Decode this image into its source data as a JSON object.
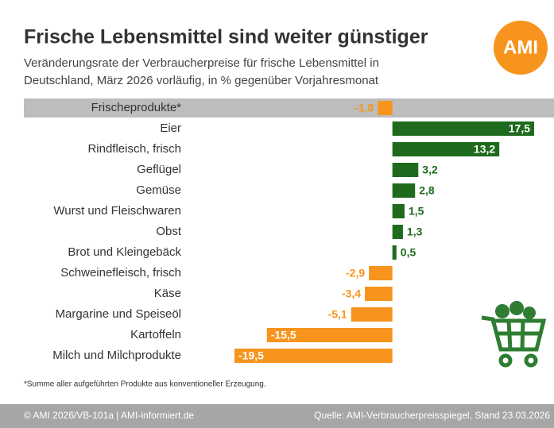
{
  "chart_data": {
    "type": "bar",
    "orientation": "horizontal",
    "title": "Frische Lebensmittel sind weiter günstiger",
    "subtitle": [
      "Veränderungsrate der Verbraucherpreise für frische Lebensmittel in",
      "Deutschland, März 2026 vorläufig, in % gegenüber Vorjahresmonat"
    ],
    "logo": "AMI",
    "categories": [
      "Frischeprodukte*",
      "Eier",
      "Rindfleisch, frisch",
      "Geflügel",
      "Gemüse",
      "Wurst und Fleischwaren",
      "Obst",
      "Brot und Kleingebäck",
      "Schweinefleisch, frisch",
      "Käse",
      "Margarine und Speiseöl",
      "Kartoffeln",
      "Milch und Milchprodukte"
    ],
    "values": [
      -1.8,
      17.5,
      13.2,
      3.2,
      2.8,
      1.5,
      1.3,
      0.5,
      -2.9,
      -3.4,
      -5.1,
      -15.5,
      -19.5
    ],
    "value_labels": [
      "-1,8",
      "17,5",
      "13,2",
      "3,2",
      "2,8",
      "1,5",
      "1,3",
      "0,5",
      "-2,9",
      "-3,4",
      "-5,1",
      "-15,5",
      "-19,5"
    ],
    "positive_color": "#1e6b1e",
    "negative_color": "#f7941d",
    "footnote": "*Summe aller aufgeführten Produkte aus konventioneller Erzeugung.",
    "footer_left": "© AMI 2026/VB-101a | AMI-informiert.de",
    "footer_right": "Quelle: AMI-Verbraucherpreisspiegel, Stand 23.03.2026"
  }
}
